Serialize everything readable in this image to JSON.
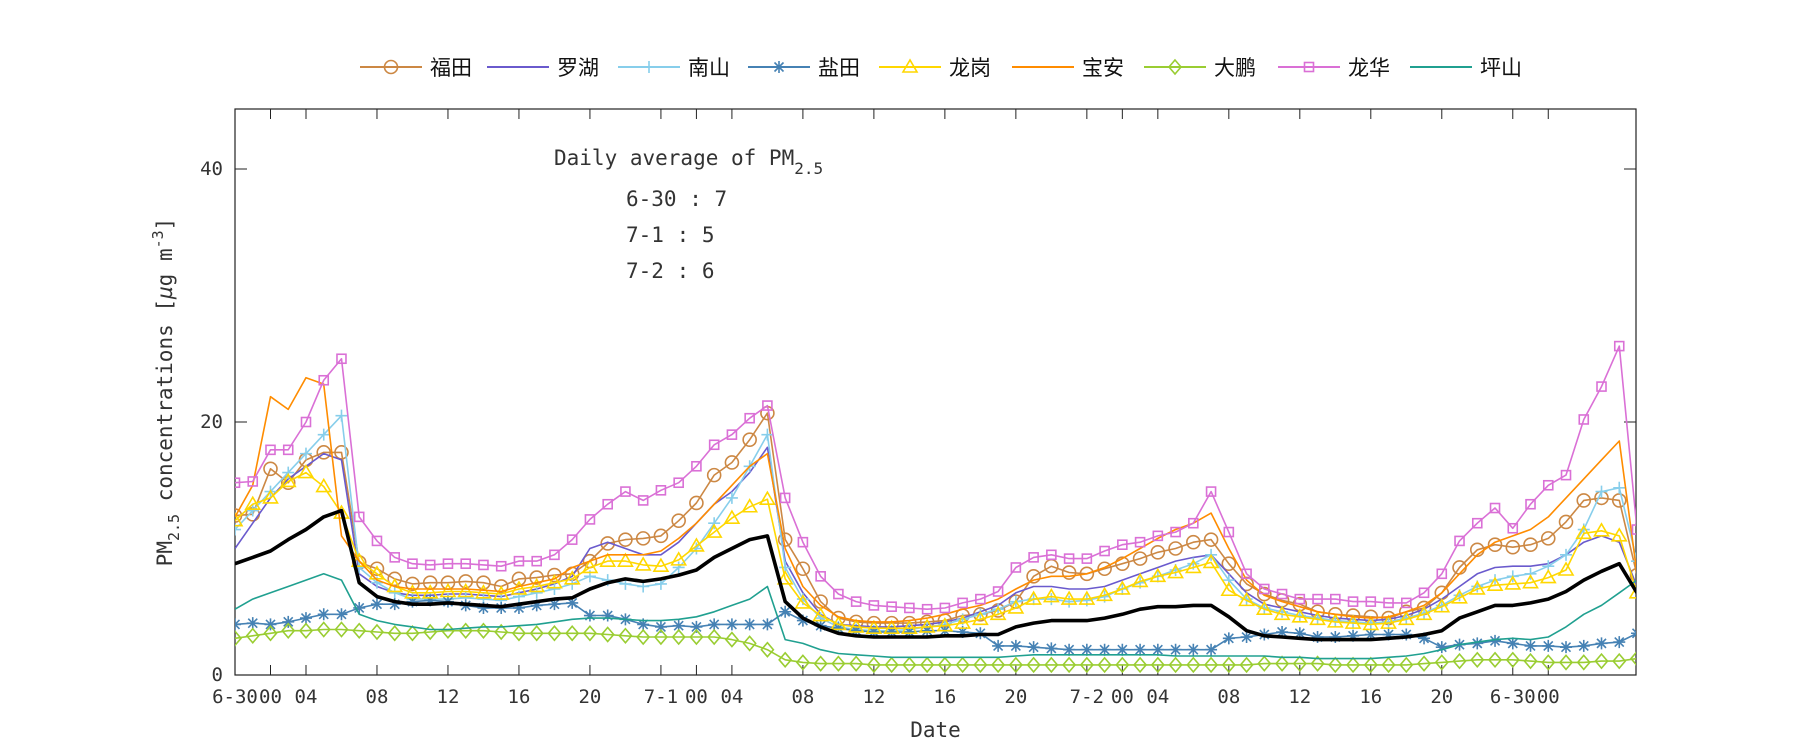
{
  "chart_data": {
    "type": "line",
    "title": "",
    "xlabel": "Date",
    "ylabel": "PM2.5 concentrations [µg m-3]",
    "ylabel_parts": {
      "pre": "PM",
      "sub": "2.5",
      "mid": " concentrations [",
      "mu": "µ",
      "unit": "g m",
      "sup": "-3",
      "end": "]"
    },
    "ylim": [
      0,
      45
    ],
    "yticks": [
      0,
      20,
      40
    ],
    "x_hours_range": [
      0,
      84
    ],
    "xticks": [
      {
        "h": 0,
        "label": "6-30"
      },
      {
        "h": 2,
        "label": "00"
      },
      {
        "h": 4,
        "label": "04"
      },
      {
        "h": 8,
        "label": "08"
      },
      {
        "h": 12,
        "label": "12"
      },
      {
        "h": 16,
        "label": "16"
      },
      {
        "h": 20,
        "label": "20"
      },
      {
        "h": 24,
        "label": "7-1"
      },
      {
        "h": 26,
        "label": "00"
      },
      {
        "h": 28,
        "label": "04"
      },
      {
        "h": 32,
        "label": "08"
      },
      {
        "h": 36,
        "label": "12"
      },
      {
        "h": 40,
        "label": "16"
      },
      {
        "h": 44,
        "label": "20"
      },
      {
        "h": 48,
        "label": "7-2"
      },
      {
        "h": 50,
        "label": "00"
      },
      {
        "h": 52,
        "label": "04"
      },
      {
        "h": 56,
        "label": "08"
      },
      {
        "h": 60,
        "label": "12"
      },
      {
        "h": 64,
        "label": "16"
      },
      {
        "h": 68,
        "label": "20"
      },
      {
        "h": 72,
        "label": "6-30"
      },
      {
        "h": 74,
        "label": "00"
      }
    ],
    "annotation": {
      "title_pre": "Daily average of PM",
      "title_sub": "2.5",
      "lines": [
        "6-30 : 7",
        "7-1 : 5",
        "7-2 : 6"
      ]
    },
    "legend_position": "top",
    "grid": false,
    "series": [
      {
        "name": "福田",
        "color": "#cc8844",
        "marker": "circle",
        "values": [
          12.6,
          12.7,
          16.3,
          15.2,
          17.0,
          17.6,
          17.6,
          8.9,
          8.4,
          7.6,
          7.2,
          7.3,
          7.3,
          7.4,
          7.3,
          7.0,
          7.6,
          7.7,
          7.9,
          8.0,
          9.0,
          10.4,
          10.7,
          10.8,
          11.0,
          12.2,
          13.6,
          15.8,
          16.8,
          18.6,
          20.7,
          10.7,
          8.4,
          5.8,
          4.5,
          4.2,
          4.1,
          4.1,
          4.1,
          4.2,
          4.3,
          4.7,
          4.8,
          5.1,
          5.8,
          7.8,
          8.6,
          8.1,
          8.0,
          8.4,
          8.8,
          9.2,
          9.7,
          10.0,
          10.5,
          10.7,
          8.8,
          7.2,
          6.4,
          5.9,
          5.6,
          5.0,
          4.8,
          4.7,
          4.6,
          4.5,
          5.0,
          5.3,
          6.5,
          8.5,
          9.9,
          10.3,
          10.1,
          10.3,
          10.8,
          12.1,
          13.8,
          14.0,
          13.8,
          7.9
        ]
      },
      {
        "name": "罗湖",
        "color": "#6a5acd",
        "marker": "none",
        "values": [
          10.0,
          12.0,
          14.0,
          15.5,
          16.5,
          17.5,
          17.0,
          8.0,
          7.0,
          6.5,
          6.3,
          6.3,
          6.4,
          6.4,
          6.3,
          6.2,
          6.5,
          6.8,
          7.2,
          7.8,
          10.0,
          10.5,
          10.0,
          9.5,
          9.5,
          10.5,
          12.0,
          13.5,
          14.5,
          16.0,
          18.0,
          9.0,
          6.5,
          4.8,
          4.0,
          3.9,
          3.8,
          3.8,
          3.9,
          4.0,
          4.2,
          4.5,
          5.0,
          5.5,
          6.5,
          7.0,
          7.0,
          6.8,
          6.8,
          7.0,
          7.5,
          8.0,
          8.5,
          9.0,
          9.3,
          9.5,
          8.0,
          6.5,
          5.6,
          5.3,
          5.0,
          4.7,
          4.5,
          4.4,
          4.3,
          4.4,
          4.7,
          5.2,
          6.0,
          7.0,
          8.0,
          8.5,
          8.6,
          8.6,
          8.8,
          9.5,
          10.5,
          11.0,
          10.5,
          7.0
        ]
      },
      {
        "name": "南山",
        "color": "#87ceeb",
        "marker": "plus",
        "values": [
          11.5,
          13.0,
          14.5,
          16.0,
          17.5,
          19.0,
          20.5,
          8.5,
          7.3,
          6.5,
          6.0,
          6.0,
          6.0,
          6.1,
          6.0,
          5.9,
          6.2,
          6.5,
          6.8,
          7.2,
          7.8,
          7.5,
          7.2,
          7.0,
          7.2,
          8.5,
          10.0,
          12.0,
          14.0,
          16.5,
          19.0,
          8.5,
          6.0,
          4.5,
          3.8,
          3.6,
          3.5,
          3.5,
          3.6,
          3.8,
          4.0,
          4.4,
          4.8,
          5.2,
          5.8,
          6.0,
          6.0,
          5.8,
          5.9,
          6.2,
          6.8,
          7.3,
          7.8,
          8.3,
          8.8,
          9.5,
          7.5,
          6.0,
          5.3,
          5.0,
          4.7,
          4.5,
          4.3,
          4.2,
          4.1,
          4.2,
          4.5,
          4.9,
          5.5,
          6.3,
          7.0,
          7.5,
          7.8,
          8.0,
          8.6,
          9.5,
          11.5,
          14.5,
          14.8,
          9.0
        ]
      },
      {
        "name": "盐田",
        "color": "#4682b4",
        "marker": "star",
        "values": [
          4.0,
          4.1,
          4.0,
          4.2,
          4.5,
          4.8,
          4.8,
          5.3,
          5.6,
          5.6,
          5.8,
          5.9,
          5.8,
          5.5,
          5.3,
          5.3,
          5.3,
          5.5,
          5.6,
          5.7,
          4.7,
          4.7,
          4.4,
          4.0,
          3.8,
          3.9,
          3.8,
          4.0,
          4.0,
          4.0,
          4.0,
          5.0,
          4.3,
          3.9,
          3.7,
          3.5,
          3.4,
          3.4,
          3.4,
          3.5,
          3.5,
          3.4,
          3.3,
          2.3,
          2.3,
          2.2,
          2.1,
          2.0,
          2.0,
          2.0,
          2.0,
          2.0,
          2.0,
          2.0,
          2.0,
          2.0,
          2.9,
          3.0,
          3.2,
          3.4,
          3.3,
          3.0,
          3.0,
          3.1,
          3.2,
          3.2,
          3.2,
          2.9,
          2.2,
          2.4,
          2.5,
          2.7,
          2.5,
          2.3,
          2.3,
          2.2,
          2.3,
          2.5,
          2.6,
          3.3
        ]
      },
      {
        "name": "龙岗",
        "color": "#ffd700",
        "marker": "triangle",
        "values": [
          12.2,
          13.5,
          14.0,
          15.3,
          16.0,
          14.9,
          12.8,
          9.0,
          8.0,
          7.0,
          6.5,
          6.5,
          6.6,
          6.6,
          6.5,
          6.4,
          6.8,
          7.0,
          7.3,
          7.6,
          8.5,
          9.0,
          9.0,
          8.7,
          8.6,
          9.1,
          10.2,
          11.3,
          12.4,
          13.3,
          13.9,
          7.6,
          5.7,
          4.7,
          4.0,
          3.8,
          3.7,
          3.7,
          3.7,
          3.8,
          3.9,
          4.1,
          4.4,
          4.8,
          5.3,
          6.0,
          6.2,
          6.0,
          6.0,
          6.3,
          6.8,
          7.4,
          7.8,
          8.1,
          8.5,
          8.9,
          6.7,
          5.9,
          5.2,
          4.8,
          4.6,
          4.4,
          4.2,
          4.1,
          4.0,
          4.1,
          4.4,
          4.8,
          5.4,
          6.1,
          6.8,
          7.1,
          7.2,
          7.3,
          7.7,
          8.3,
          11.2,
          11.4,
          11.0,
          6.5
        ]
      },
      {
        "name": "宝安",
        "color": "#ff8c00",
        "marker": "none",
        "values": [
          12.5,
          15.0,
          22.0,
          21.0,
          23.5,
          23.0,
          11.0,
          9.0,
          7.5,
          7.0,
          6.8,
          6.8,
          6.8,
          6.8,
          6.7,
          6.6,
          7.0,
          7.3,
          7.6,
          8.5,
          9.0,
          9.5,
          9.5,
          9.5,
          9.8,
          10.8,
          12.0,
          13.5,
          15.0,
          16.5,
          17.5,
          10.0,
          7.0,
          5.5,
          4.6,
          4.3,
          4.2,
          4.2,
          4.3,
          4.5,
          4.8,
          5.2,
          5.5,
          6.0,
          6.8,
          7.5,
          7.8,
          7.8,
          8.0,
          8.5,
          9.2,
          10.0,
          10.8,
          11.5,
          12.0,
          12.8,
          10.0,
          7.5,
          6.3,
          5.8,
          5.4,
          5.0,
          4.8,
          4.6,
          4.5,
          4.6,
          5.0,
          5.5,
          6.5,
          8.0,
          9.5,
          10.5,
          11.0,
          11.5,
          12.5,
          14.0,
          15.5,
          17.0,
          18.5,
          8.0
        ]
      },
      {
        "name": "大鹏",
        "color": "#9acd32",
        "marker": "diamond",
        "values": [
          2.9,
          3.1,
          3.3,
          3.5,
          3.5,
          3.6,
          3.6,
          3.5,
          3.4,
          3.3,
          3.3,
          3.4,
          3.5,
          3.5,
          3.5,
          3.4,
          3.3,
          3.3,
          3.3,
          3.3,
          3.3,
          3.2,
          3.1,
          3.0,
          3.0,
          3.0,
          3.0,
          3.0,
          2.8,
          2.5,
          2.0,
          1.2,
          1.0,
          0.9,
          0.9,
          0.9,
          0.8,
          0.8,
          0.8,
          0.8,
          0.8,
          0.8,
          0.8,
          0.8,
          0.8,
          0.8,
          0.8,
          0.8,
          0.8,
          0.8,
          0.8,
          0.8,
          0.8,
          0.8,
          0.8,
          0.8,
          0.8,
          0.8,
          0.9,
          0.9,
          0.9,
          0.9,
          0.8,
          0.8,
          0.8,
          0.8,
          0.8,
          0.9,
          1.0,
          1.1,
          1.2,
          1.2,
          1.2,
          1.1,
          1.0,
          1.0,
          1.0,
          1.1,
          1.1,
          1.3
        ]
      },
      {
        "name": "龙华",
        "color": "#da70d6",
        "marker": "square",
        "values": [
          15.2,
          15.3,
          17.8,
          17.8,
          20.0,
          23.3,
          25.0,
          12.5,
          10.6,
          9.3,
          8.8,
          8.7,
          8.8,
          8.8,
          8.7,
          8.6,
          9.0,
          9.0,
          9.5,
          10.7,
          12.3,
          13.5,
          14.5,
          13.8,
          14.6,
          15.2,
          16.5,
          18.2,
          19.0,
          20.3,
          21.3,
          14.0,
          10.5,
          7.8,
          6.4,
          5.8,
          5.5,
          5.4,
          5.3,
          5.2,
          5.3,
          5.7,
          6.0,
          6.6,
          8.5,
          9.3,
          9.5,
          9.2,
          9.2,
          9.8,
          10.3,
          10.5,
          11.0,
          11.3,
          12.0,
          14.5,
          11.3,
          8.0,
          6.8,
          6.4,
          6.0,
          6.0,
          6.0,
          5.8,
          5.8,
          5.7,
          5.7,
          6.5,
          8.0,
          10.6,
          12.0,
          13.2,
          11.6,
          13.5,
          15.0,
          15.8,
          20.2,
          22.8,
          26.0,
          11.5
        ]
      },
      {
        "name": "坪山",
        "color": "#20a090",
        "marker": "none",
        "values": [
          5.2,
          6.0,
          6.5,
          7.0,
          7.5,
          8.0,
          7.5,
          4.8,
          4.3,
          4.0,
          3.8,
          3.6,
          3.6,
          3.7,
          3.8,
          3.8,
          3.9,
          4.0,
          4.2,
          4.4,
          4.5,
          4.5,
          4.4,
          4.3,
          4.3,
          4.4,
          4.6,
          5.0,
          5.5,
          6.0,
          7.0,
          2.8,
          2.5,
          2.0,
          1.7,
          1.6,
          1.5,
          1.4,
          1.4,
          1.4,
          1.4,
          1.4,
          1.4,
          1.4,
          1.5,
          1.6,
          1.6,
          1.6,
          1.6,
          1.6,
          1.6,
          1.6,
          1.6,
          1.5,
          1.5,
          1.5,
          1.5,
          1.5,
          1.5,
          1.4,
          1.4,
          1.3,
          1.3,
          1.3,
          1.3,
          1.4,
          1.5,
          1.7,
          2.0,
          2.4,
          2.6,
          2.8,
          2.9,
          2.8,
          3.0,
          3.8,
          4.8,
          5.5,
          6.5,
          7.5
        ]
      },
      {
        "name": "",
        "color": "#000000",
        "marker": "none",
        "bold": true,
        "values": [
          8.8,
          9.3,
          9.8,
          10.7,
          11.5,
          12.5,
          13.0,
          7.3,
          6.2,
          5.8,
          5.6,
          5.6,
          5.7,
          5.6,
          5.5,
          5.4,
          5.6,
          5.8,
          6.0,
          6.1,
          6.8,
          7.3,
          7.6,
          7.4,
          7.6,
          7.9,
          8.3,
          9.3,
          10.0,
          10.7,
          11.0,
          5.8,
          4.5,
          3.8,
          3.3,
          3.1,
          3.0,
          3.0,
          3.0,
          3.0,
          3.1,
          3.1,
          3.2,
          3.2,
          3.8,
          4.1,
          4.3,
          4.3,
          4.3,
          4.5,
          4.8,
          5.2,
          5.4,
          5.4,
          5.5,
          5.5,
          4.6,
          3.5,
          3.1,
          3.0,
          2.9,
          2.8,
          2.8,
          2.8,
          2.8,
          2.9,
          3.0,
          3.2,
          3.5,
          4.5,
          5.0,
          5.5,
          5.5,
          5.7,
          6.0,
          6.6,
          7.5,
          8.2,
          8.8,
          6.5
        ]
      }
    ]
  }
}
